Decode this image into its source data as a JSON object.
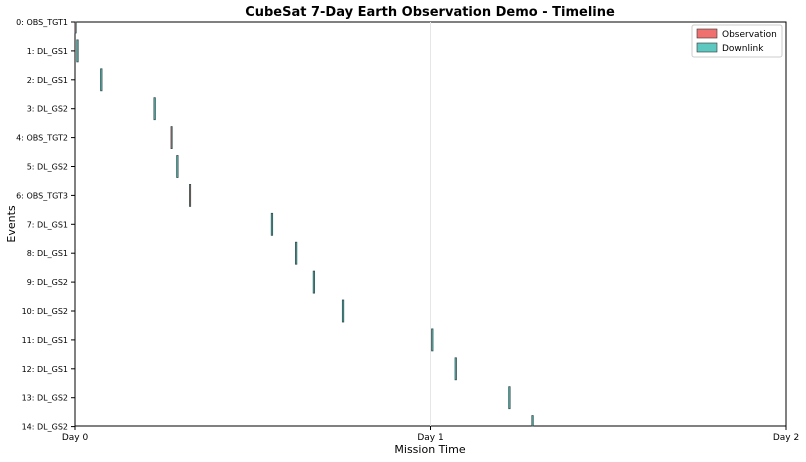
{
  "chart_data": {
    "type": "timeline",
    "title": "CubeSat 7-Day Earth Observation Demo - Timeline",
    "xlabel": "Mission Time",
    "ylabel": "Events",
    "xlim": [
      0,
      2
    ],
    "xticks": [
      {
        "value": 0,
        "label": "Day 0"
      },
      {
        "value": 1,
        "label": "Day 1"
      },
      {
        "value": 2,
        "label": "Day 2"
      }
    ],
    "grid": true,
    "legend": {
      "placement": "top-right",
      "entries": [
        {
          "name": "Observation",
          "color": "#f07070"
        },
        {
          "name": "Downlink",
          "color": "#5cc8c0"
        }
      ]
    },
    "events": [
      {
        "label": "0: OBS_TGT1",
        "type": "Observation",
        "start": 0.0,
        "duration": 0.002
      },
      {
        "label": "1: DL_GS1",
        "type": "Downlink",
        "start": 0.005,
        "duration": 0.004
      },
      {
        "label": "2: DL_GS1",
        "type": "Downlink",
        "start": 0.072,
        "duration": 0.004
      },
      {
        "label": "3: DL_GS2",
        "type": "Downlink",
        "start": 0.222,
        "duration": 0.004
      },
      {
        "label": "4: OBS_TGT2",
        "type": "Observation",
        "start": 0.27,
        "duration": 0.003
      },
      {
        "label": "5: DL_GS2",
        "type": "Downlink",
        "start": 0.286,
        "duration": 0.004
      },
      {
        "label": "6: OBS_TGT3",
        "type": "Observation",
        "start": 0.322,
        "duration": 0.002
      },
      {
        "label": "7: DL_GS1",
        "type": "Downlink",
        "start": 0.552,
        "duration": 0.004
      },
      {
        "label": "8: DL_GS1",
        "type": "Downlink",
        "start": 0.62,
        "duration": 0.004
      },
      {
        "label": "9: DL_GS2",
        "type": "Downlink",
        "start": 0.67,
        "duration": 0.004
      },
      {
        "label": "10: DL_GS2",
        "type": "Downlink",
        "start": 0.752,
        "duration": 0.004
      },
      {
        "label": "11: DL_GS1",
        "type": "Downlink",
        "start": 1.003,
        "duration": 0.004
      },
      {
        "label": "12: DL_GS1",
        "type": "Downlink",
        "start": 1.069,
        "duration": 0.004
      },
      {
        "label": "13: DL_GS2",
        "type": "Downlink",
        "start": 1.22,
        "duration": 0.004
      },
      {
        "label": "14: DL_GS2",
        "type": "Downlink",
        "start": 1.285,
        "duration": 0.004
      }
    ]
  }
}
